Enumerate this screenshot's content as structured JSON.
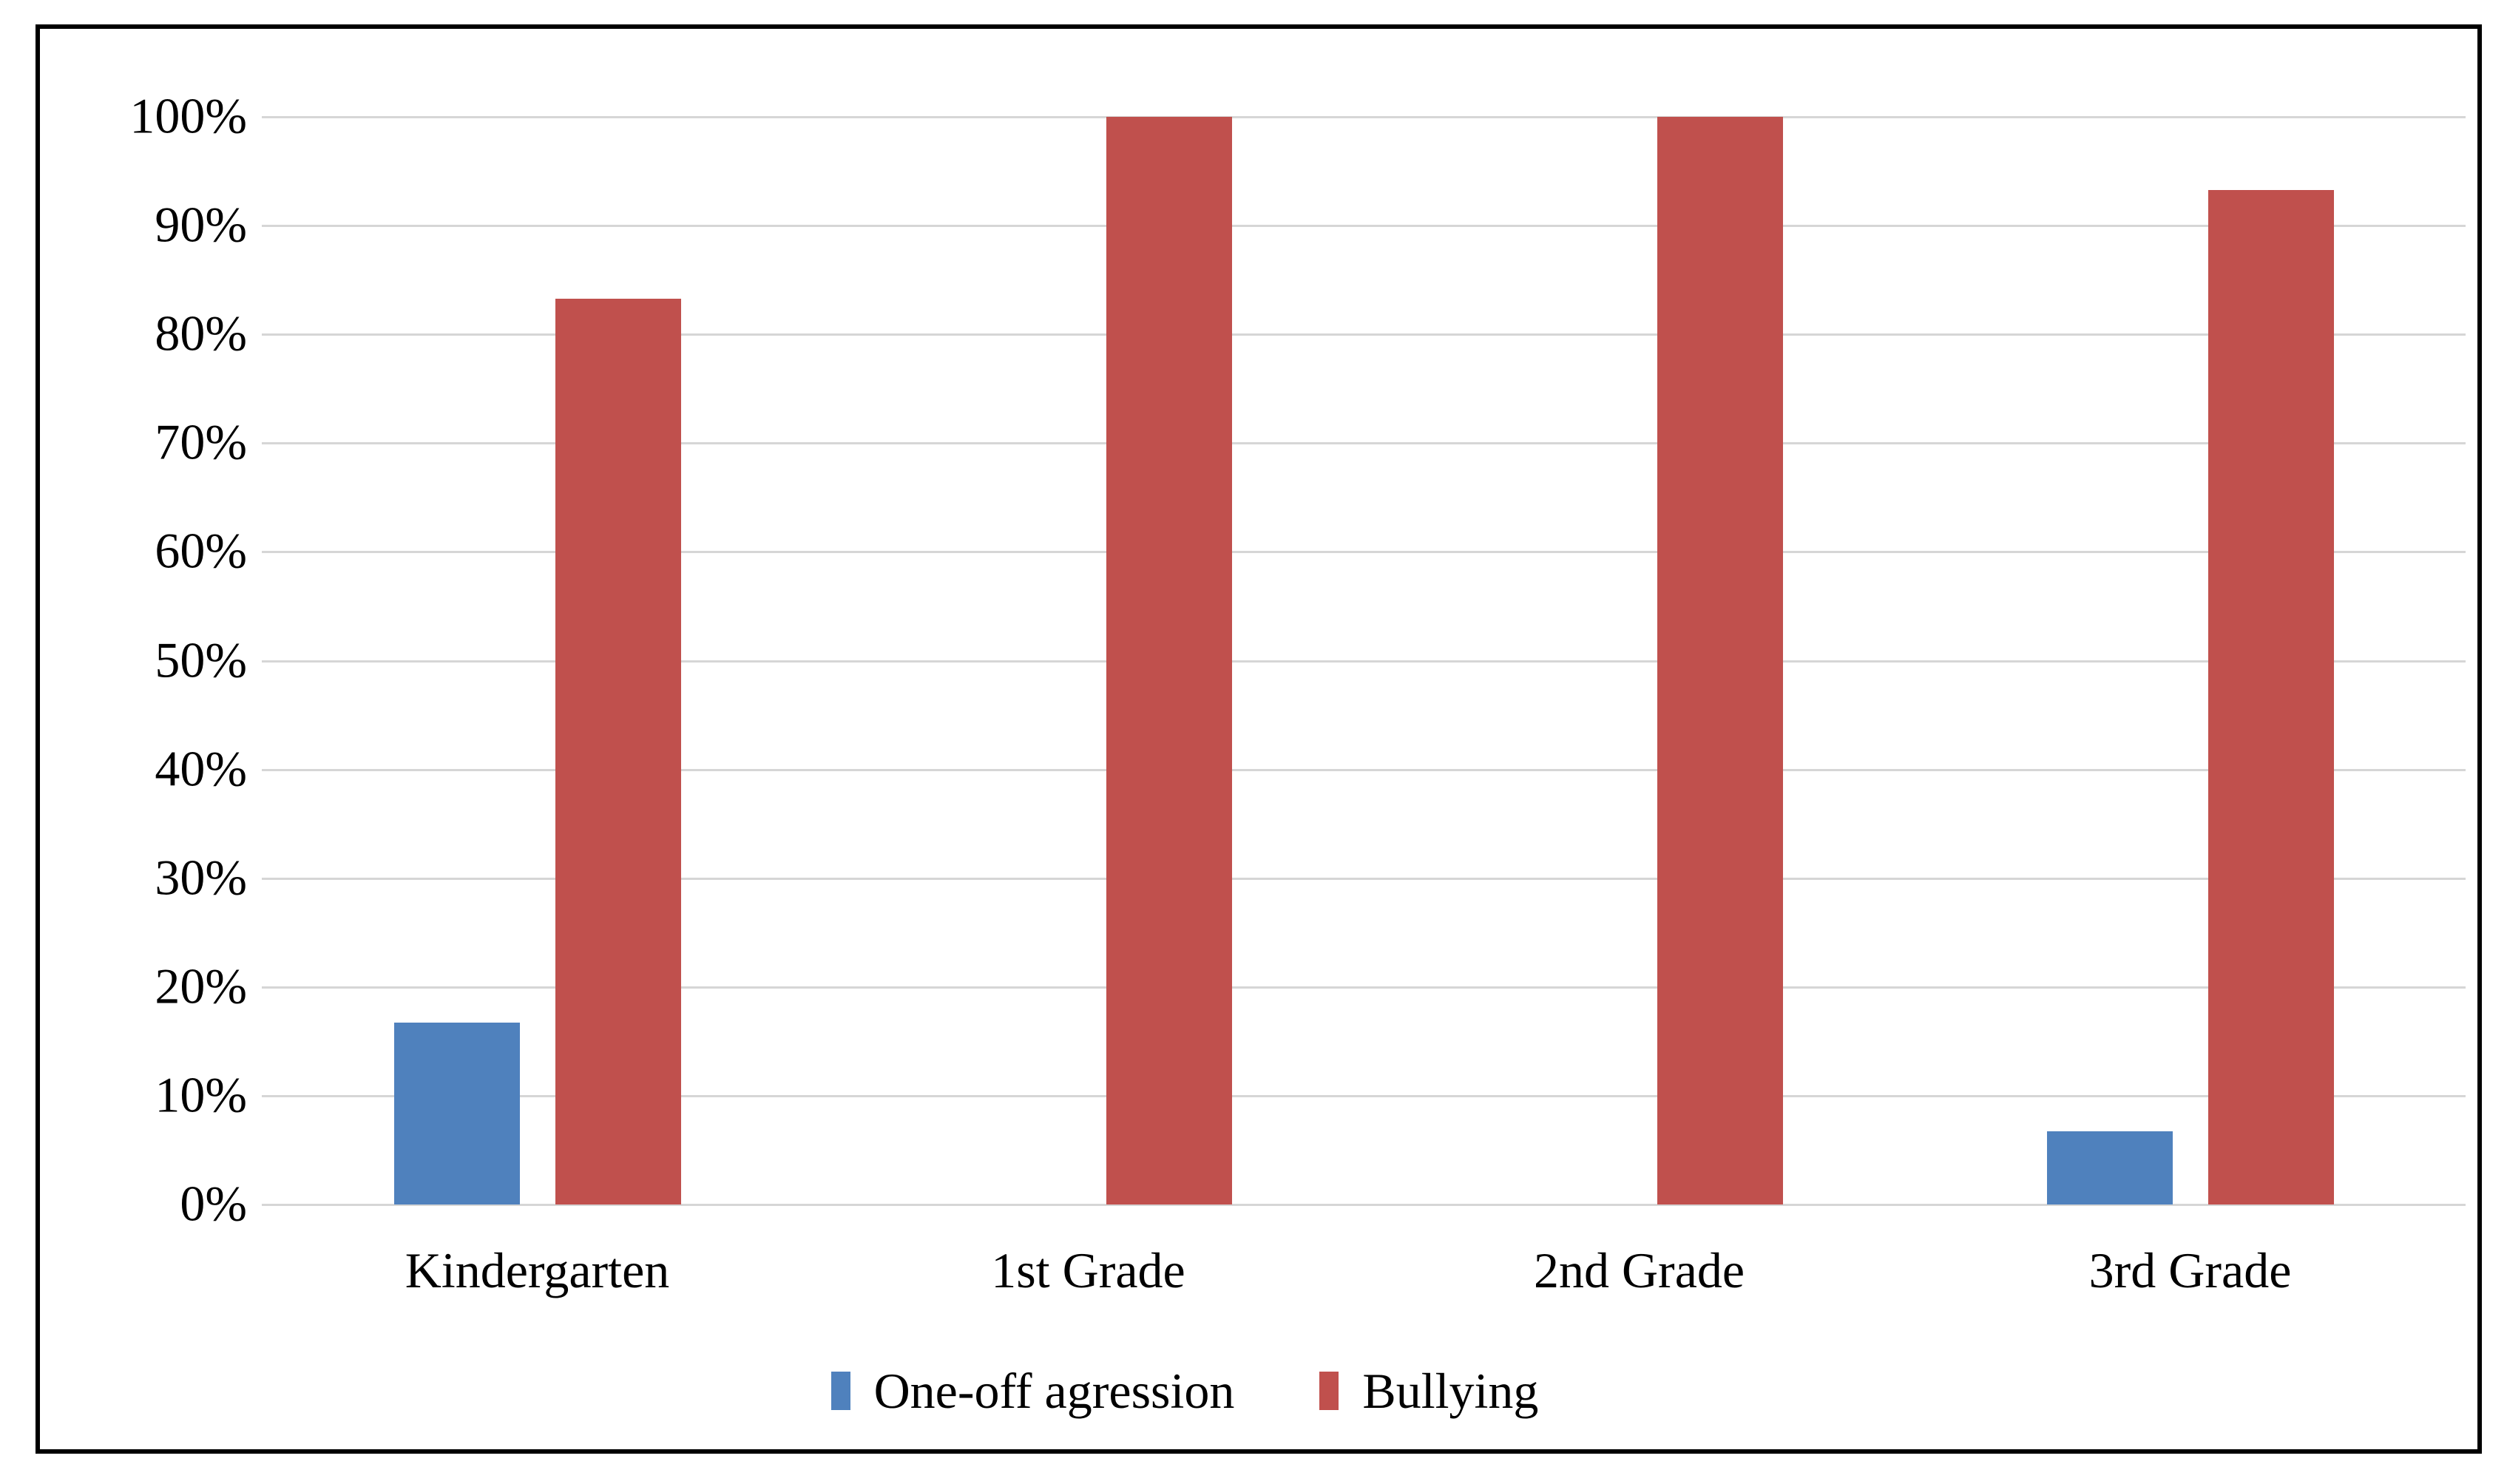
{
  "chart_data": {
    "type": "bar",
    "title": "",
    "xlabel": "",
    "ylabel": "",
    "categories": [
      "Kindergarten",
      "1st Grade",
      "2nd Grade",
      "3rd Grade"
    ],
    "series": [
      {
        "name": "One-off agression",
        "color": "#4F81BD",
        "values": [
          16.7,
          0,
          0,
          6.7
        ]
      },
      {
        "name": "Bullying",
        "color": "#C0504D",
        "values": [
          83.3,
          100,
          100,
          93.3
        ]
      }
    ],
    "y_ticks": [
      "100%",
      "90%",
      "80%",
      "70%",
      "60%",
      "50%",
      "40%",
      "30%",
      "20%",
      "10%",
      "0%"
    ],
    "ylim": [
      0,
      100
    ],
    "grid": "horizontal-only",
    "gridline_color": "#d6d6d6",
    "frame_color": "#000000",
    "background_color": "#ffffff",
    "legend_position": "bottom"
  }
}
